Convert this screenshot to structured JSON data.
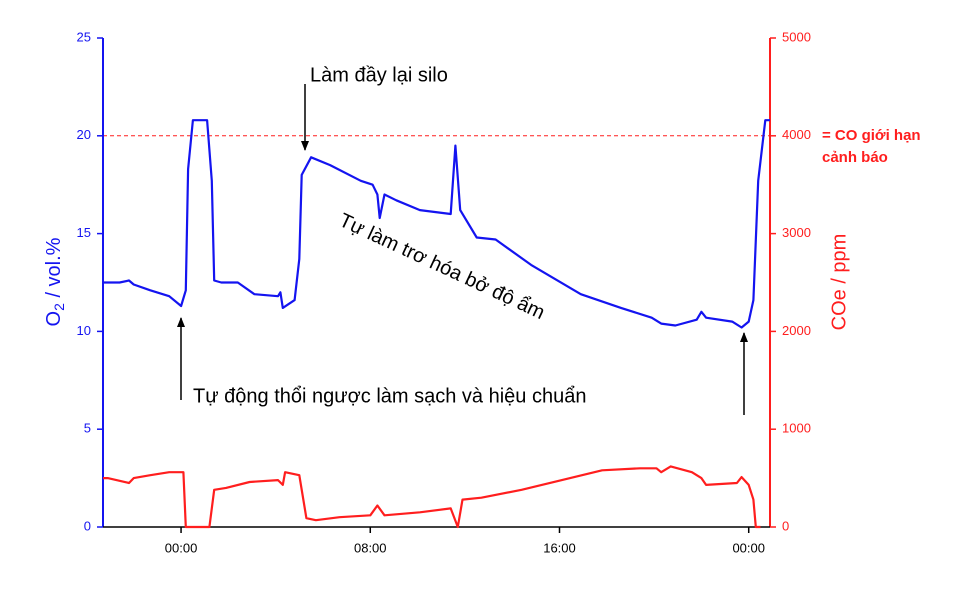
{
  "chart_data": {
    "type": "line",
    "ylabel": {
      "main": "O",
      "sub": "2",
      "rest": " / vol.%"
    },
    "y2label": "COe / ppm",
    "xlim": [
      -3.3,
      24.9
    ],
    "xticks": [
      {
        "value": 0,
        "label": "00:00"
      },
      {
        "value": 8,
        "label": "08:00"
      },
      {
        "value": 16,
        "label": "16:00"
      },
      {
        "value": 24,
        "label": "00:00"
      }
    ],
    "ylim": [
      0,
      25
    ],
    "yticks": [
      0,
      5,
      10,
      15,
      20,
      25
    ],
    "y2lim": [
      0,
      5000
    ],
    "y2ticks": [
      0,
      1000,
      2000,
      3000,
      4000,
      5000
    ],
    "series": [
      {
        "name": "O2",
        "color": "#1414f0",
        "x": [
          -3.3,
          -2.6,
          -2.2,
          -2.0,
          -1.3,
          -0.5,
          0,
          0.2,
          0.3,
          0.5,
          1.1,
          1.3,
          1.4,
          1.7,
          2.4,
          3.1,
          4.1,
          4.2,
          4.3,
          4.8,
          5.0,
          5.1,
          5.5,
          6.3,
          7.6,
          8.1,
          8.3,
          8.4,
          8.6,
          9.1,
          10.1,
          11.4,
          11.6,
          11.8,
          12.5,
          13.3,
          14.8,
          16.9,
          18.6,
          19.9,
          20.3,
          20.9,
          21.8,
          22.0,
          22.2,
          23.3,
          23.7,
          24.0,
          24.2,
          24.4,
          24.7,
          24.9
        ],
        "values": [
          12.5,
          12.5,
          12.6,
          12.4,
          12.1,
          11.8,
          11.3,
          12.1,
          18.3,
          20.8,
          20.8,
          17.7,
          12.6,
          12.5,
          12.5,
          11.9,
          11.8,
          12.0,
          11.2,
          11.6,
          13.7,
          18.0,
          18.9,
          18.5,
          17.7,
          17.5,
          17.0,
          15.8,
          17.0,
          16.7,
          16.2,
          16.0,
          19.5,
          16.2,
          14.8,
          14.7,
          13.4,
          11.9,
          11.2,
          10.7,
          10.4,
          10.3,
          10.6,
          11.0,
          10.7,
          10.5,
          10.2,
          10.5,
          11.6,
          17.7,
          20.8,
          20.8
        ]
      },
      {
        "name": "COe",
        "color": "#ff1e1e",
        "axis": "y2",
        "x": [
          -3.3,
          -3.1,
          -2.2,
          -2.0,
          -1.3,
          -0.5,
          0.1,
          0.2,
          1.2,
          1.4,
          1.9,
          2.9,
          4.1,
          4.3,
          4.4,
          5.0,
          5.3,
          5.7,
          6.7,
          8.0,
          8.3,
          8.6,
          10.1,
          11.4,
          11.7,
          11.9,
          12.7,
          14.4,
          16.1,
          17.8,
          19.4,
          20.1,
          20.3,
          20.7,
          21.6,
          22.0,
          22.2,
          23.5,
          23.7,
          24.0,
          24.2,
          24.3,
          24.5
        ],
        "values": [
          500,
          500,
          450,
          500,
          530,
          560,
          560,
          0,
          0,
          380,
          400,
          460,
          480,
          430,
          560,
          530,
          90,
          70,
          100,
          120,
          220,
          120,
          150,
          190,
          0,
          280,
          300,
          380,
          480,
          580,
          600,
          600,
          560,
          620,
          560,
          500,
          430,
          450,
          510,
          430,
          280,
          0,
          0
        ]
      }
    ],
    "threshold": {
      "value": 4000,
      "axis": "y2",
      "color": "#ff1e1e",
      "label": [
        "= CO giới hạn",
        "cảnh báo"
      ]
    },
    "annotations": [
      "Làm đầy lại silo",
      "Tự làm trơ hóa bở độ ẩm",
      "Tự động thổi ngược làm sạch và hiệu chuẩn"
    ]
  }
}
